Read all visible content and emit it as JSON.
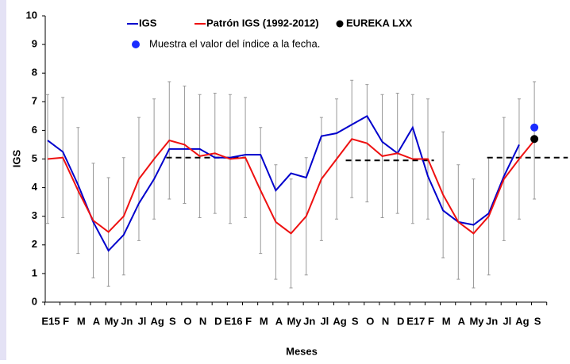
{
  "chart_data": {
    "type": "line",
    "x_label": "Meses",
    "y_label": "IGS",
    "categories": [
      "E15",
      "F",
      "M",
      "A",
      "My",
      "Jn",
      "Jl",
      "Ag",
      "S",
      "O",
      "N",
      "D",
      "E16",
      "F",
      "M",
      "A",
      "My",
      "Jn",
      "Jl",
      "Ag",
      "S",
      "O",
      "N",
      "D",
      "E17",
      "F",
      "M",
      "A",
      "My",
      "Jn",
      "Jl",
      "Ag",
      "S"
    ],
    "ylim": [
      0,
      10
    ],
    "yticks": [
      0,
      1,
      2,
      3,
      4,
      5,
      6,
      7,
      8,
      9,
      10
    ],
    "series": [
      {
        "name": "IGS",
        "kind": "line",
        "color": "#0000cc",
        "values": [
          5.65,
          5.25,
          4.1,
          2.8,
          1.8,
          2.35,
          3.45,
          4.3,
          5.35,
          5.35,
          5.35,
          5.05,
          5.05,
          5.15,
          5.15,
          3.9,
          4.5,
          4.35,
          5.8,
          5.9,
          6.2,
          6.5,
          5.6,
          5.2,
          6.1,
          4.4,
          3.2,
          2.8,
          2.7,
          3.1,
          4.4,
          5.5,
          null
        ]
      },
      {
        "name": "Patrón IGS (1992-2012)",
        "kind": "line",
        "color": "#ee1111",
        "values": [
          5.0,
          5.05,
          3.9,
          2.85,
          2.45,
          3.0,
          4.3,
          5.0,
          5.65,
          5.5,
          5.1,
          5.2,
          5.0,
          5.05,
          3.9,
          2.8,
          2.4,
          3.0,
          4.3,
          5.0,
          5.7,
          5.55,
          5.1,
          5.2,
          5.0,
          5.0,
          3.75,
          2.8,
          2.4,
          3.0,
          4.3,
          5.0,
          5.65
        ],
        "errors": [
          2.25,
          2.1,
          2.2,
          2.0,
          1.9,
          2.05,
          2.15,
          2.1,
          2.05,
          2.05,
          2.15,
          2.1,
          2.25,
          2.1,
          2.2,
          2.0,
          1.9,
          2.05,
          2.15,
          2.1,
          2.05,
          2.05,
          2.15,
          2.1,
          2.25,
          2.1,
          2.2,
          2.0,
          1.9,
          2.05,
          2.15,
          2.1,
          2.05
        ]
      },
      {
        "name": "EUREKA LXX",
        "kind": "marker",
        "color": "#000000",
        "values": [
          null,
          null,
          null,
          null,
          null,
          null,
          null,
          null,
          null,
          null,
          null,
          null,
          null,
          null,
          null,
          null,
          null,
          null,
          null,
          null,
          null,
          null,
          null,
          null,
          null,
          null,
          null,
          null,
          null,
          null,
          null,
          null,
          5.7
        ]
      },
      {
        "name": "Muestra el valor del índice a la fecha.",
        "kind": "marker",
        "color": "#1a2cff",
        "values": [
          null,
          null,
          null,
          null,
          null,
          null,
          null,
          null,
          null,
          null,
          null,
          null,
          null,
          null,
          null,
          null,
          null,
          null,
          null,
          null,
          null,
          null,
          null,
          null,
          null,
          null,
          null,
          null,
          null,
          null,
          null,
          null,
          6.1
        ]
      }
    ],
    "reference_lines": [
      {
        "value": 5.05,
        "start": 7.8,
        "end": 13.0
      },
      {
        "value": 4.95,
        "start": 19.6,
        "end": 25.4
      },
      {
        "value": 5.05,
        "start": 28.9,
        "end": 34.2
      }
    ]
  }
}
